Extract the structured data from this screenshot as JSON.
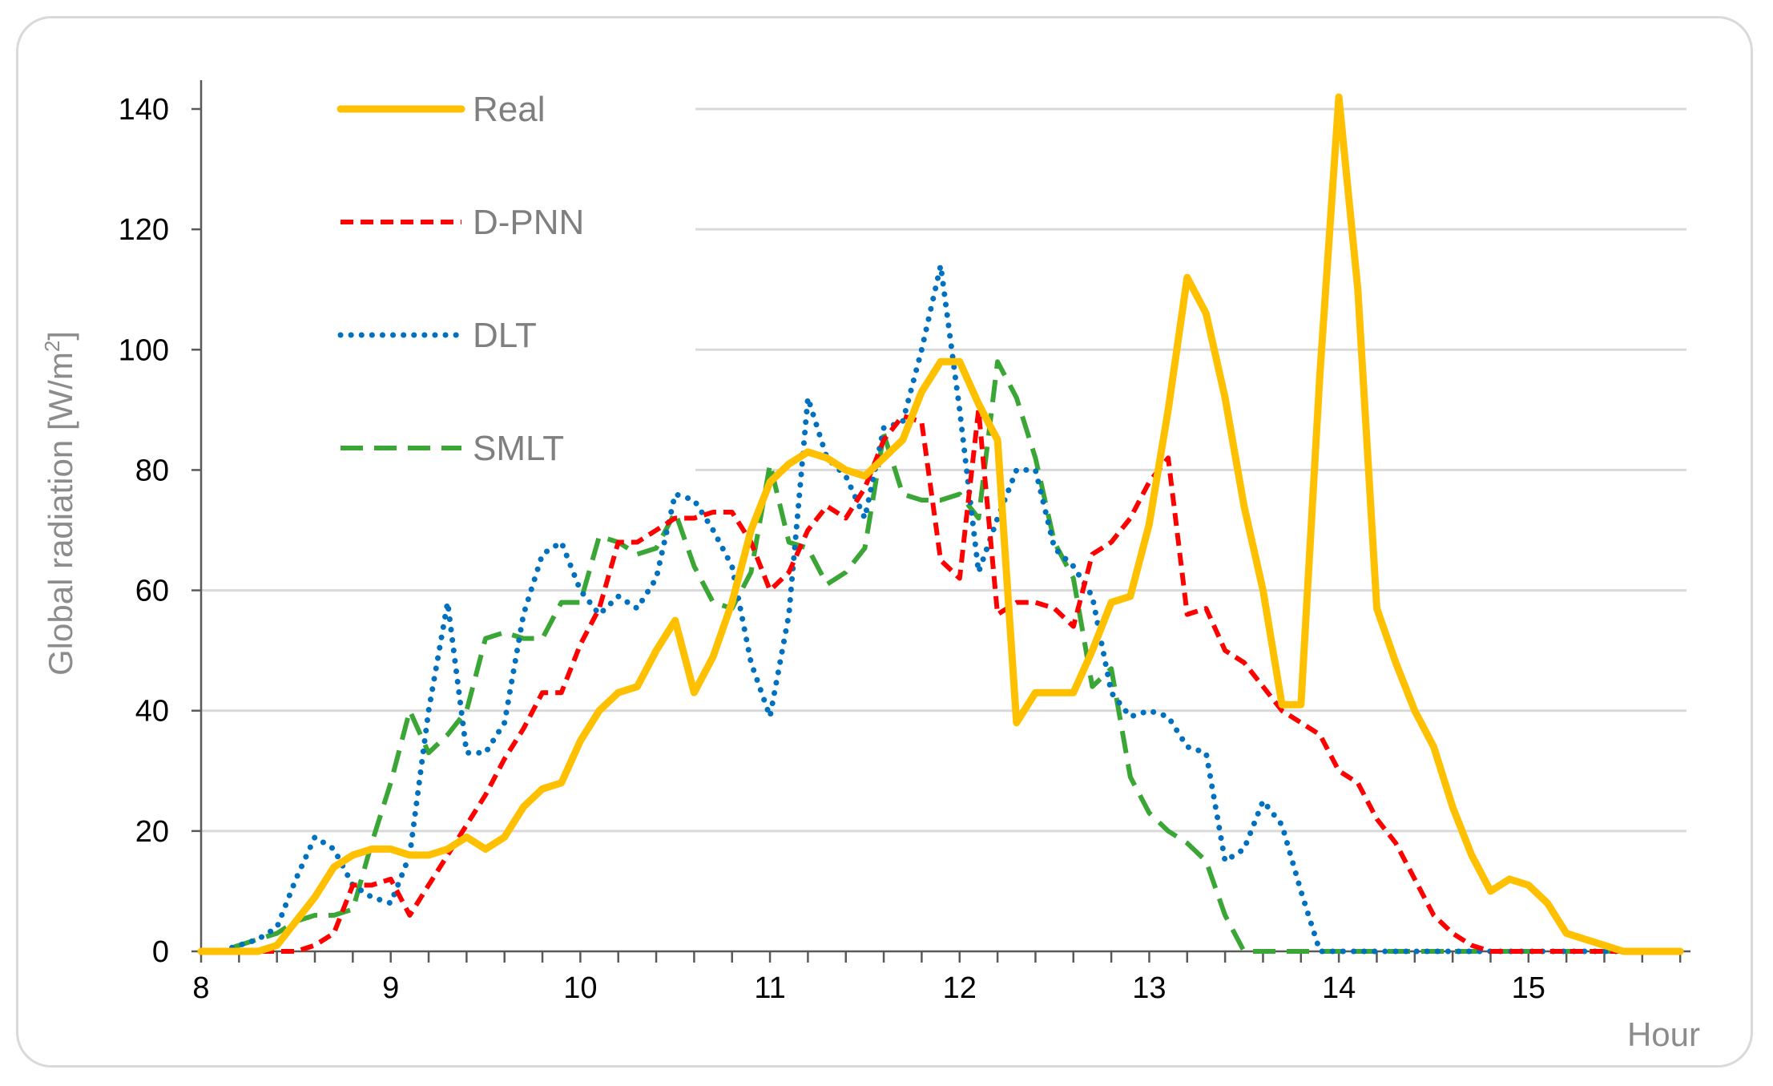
{
  "chart_data": {
    "type": "line",
    "title": "",
    "xlabel": "Hour",
    "ylabel_main": "Global radiation [W/m",
    "ylabel_sup": "2",
    "ylabel_end": "]",
    "xlim": [
      8,
      15.85
    ],
    "ylim": [
      0,
      140
    ],
    "x_ticks": [
      8,
      9,
      10,
      11,
      12,
      13,
      14,
      15
    ],
    "y_ticks": [
      0,
      20,
      40,
      60,
      80,
      100,
      120,
      140
    ],
    "grid": "horizontal",
    "legend_position": "top-left",
    "x": [
      8.0,
      8.1,
      8.2,
      8.3,
      8.4,
      8.5,
      8.6,
      8.7,
      8.8,
      8.9,
      9.0,
      9.1,
      9.2,
      9.3,
      9.4,
      9.5,
      9.6,
      9.7,
      9.8,
      9.9,
      10.0,
      10.1,
      10.2,
      10.3,
      10.4,
      10.5,
      10.6,
      10.7,
      10.8,
      10.9,
      11.0,
      11.1,
      11.2,
      11.3,
      11.4,
      11.5,
      11.6,
      11.7,
      11.8,
      11.9,
      12.0,
      12.1,
      12.2,
      12.3,
      12.4,
      12.5,
      12.6,
      12.7,
      12.8,
      12.9,
      13.0,
      13.1,
      13.2,
      13.3,
      13.4,
      13.5,
      13.6,
      13.7,
      13.8,
      13.9,
      14.0,
      14.1,
      14.2,
      14.3,
      14.4,
      14.5,
      14.6,
      14.7,
      14.8,
      14.9,
      15.0,
      15.1,
      15.2,
      15.3,
      15.4,
      15.5,
      15.6,
      15.7,
      15.8
    ],
    "series": [
      {
        "name": "Real",
        "color": "#ffc000",
        "style": "solid",
        "values": [
          0,
          0,
          0,
          0,
          1,
          5,
          9,
          14,
          16,
          17,
          17,
          16,
          16,
          17,
          19,
          17,
          19,
          24,
          27,
          28,
          35,
          40,
          43,
          44,
          50,
          55,
          43,
          49,
          58,
          70,
          78,
          81,
          83,
          82,
          80,
          79,
          82,
          85,
          93,
          98,
          98,
          91,
          85,
          38,
          43,
          43,
          43,
          50,
          58,
          59,
          71,
          90,
          112,
          106,
          92,
          74,
          60,
          41,
          41,
          96,
          142,
          110,
          57,
          48,
          40,
          34,
          24,
          16,
          10,
          12,
          11,
          8,
          3,
          2,
          1,
          0,
          0,
          0,
          0
        ]
      },
      {
        "name": "D-PNN",
        "color": "#ff0000",
        "style": "dashed",
        "values": [
          0,
          0,
          0,
          0,
          0,
          0,
          1,
          3,
          11,
          11,
          12,
          6,
          11,
          16,
          21,
          26,
          32,
          37,
          43,
          43,
          51,
          57,
          68,
          68,
          70,
          72,
          72,
          73,
          73,
          68,
          60,
          63,
          70,
          74,
          72,
          77,
          85,
          89,
          88,
          65,
          62,
          90,
          56,
          58,
          58,
          57,
          54,
          66,
          68,
          72,
          78,
          82,
          56,
          57,
          50,
          48,
          44,
          40,
          38,
          36,
          30,
          28,
          22,
          18,
          12,
          6,
          3,
          1,
          0,
          0,
          0,
          0,
          0,
          0,
          0,
          0,
          0,
          0,
          0
        ]
      },
      {
        "name": "DLT",
        "color": "#0070c0",
        "style": "dotted",
        "values": [
          0,
          0,
          1,
          2,
          4,
          12,
          19,
          17,
          11,
          9,
          8,
          16,
          40,
          58,
          33,
          33,
          38,
          56,
          66,
          68,
          60,
          56,
          59,
          57,
          62,
          76,
          75,
          70,
          64,
          48,
          39,
          56,
          92,
          82,
          79,
          72,
          87,
          88,
          100,
          114,
          90,
          63,
          72,
          80,
          80,
          67,
          64,
          59,
          43,
          39,
          40,
          39,
          34,
          33,
          15,
          17,
          25,
          21,
          10,
          0,
          0,
          0,
          0,
          0,
          0,
          0,
          0,
          0,
          0,
          0,
          0,
          0,
          0,
          0,
          0,
          0,
          0,
          0,
          0
        ]
      },
      {
        "name": "SMLT",
        "color": "#3aa635",
        "style": "dashed-long",
        "values": [
          0,
          0,
          1,
          2,
          3,
          5,
          6,
          6,
          7,
          18,
          28,
          40,
          33,
          36,
          40,
          52,
          53,
          52,
          52,
          58,
          58,
          69,
          68,
          66,
          67,
          73,
          64,
          58,
          57,
          63,
          81,
          68,
          67,
          61,
          63,
          67,
          86,
          76,
          75,
          75,
          76,
          72,
          98,
          92,
          82,
          68,
          62,
          44,
          47,
          29,
          23,
          20,
          18,
          15,
          6,
          0,
          0,
          0,
          0,
          0,
          0,
          0,
          0,
          0,
          0,
          0,
          0,
          0,
          0,
          0,
          0,
          0,
          0,
          0,
          0,
          0,
          0,
          0,
          0
        ]
      }
    ]
  }
}
